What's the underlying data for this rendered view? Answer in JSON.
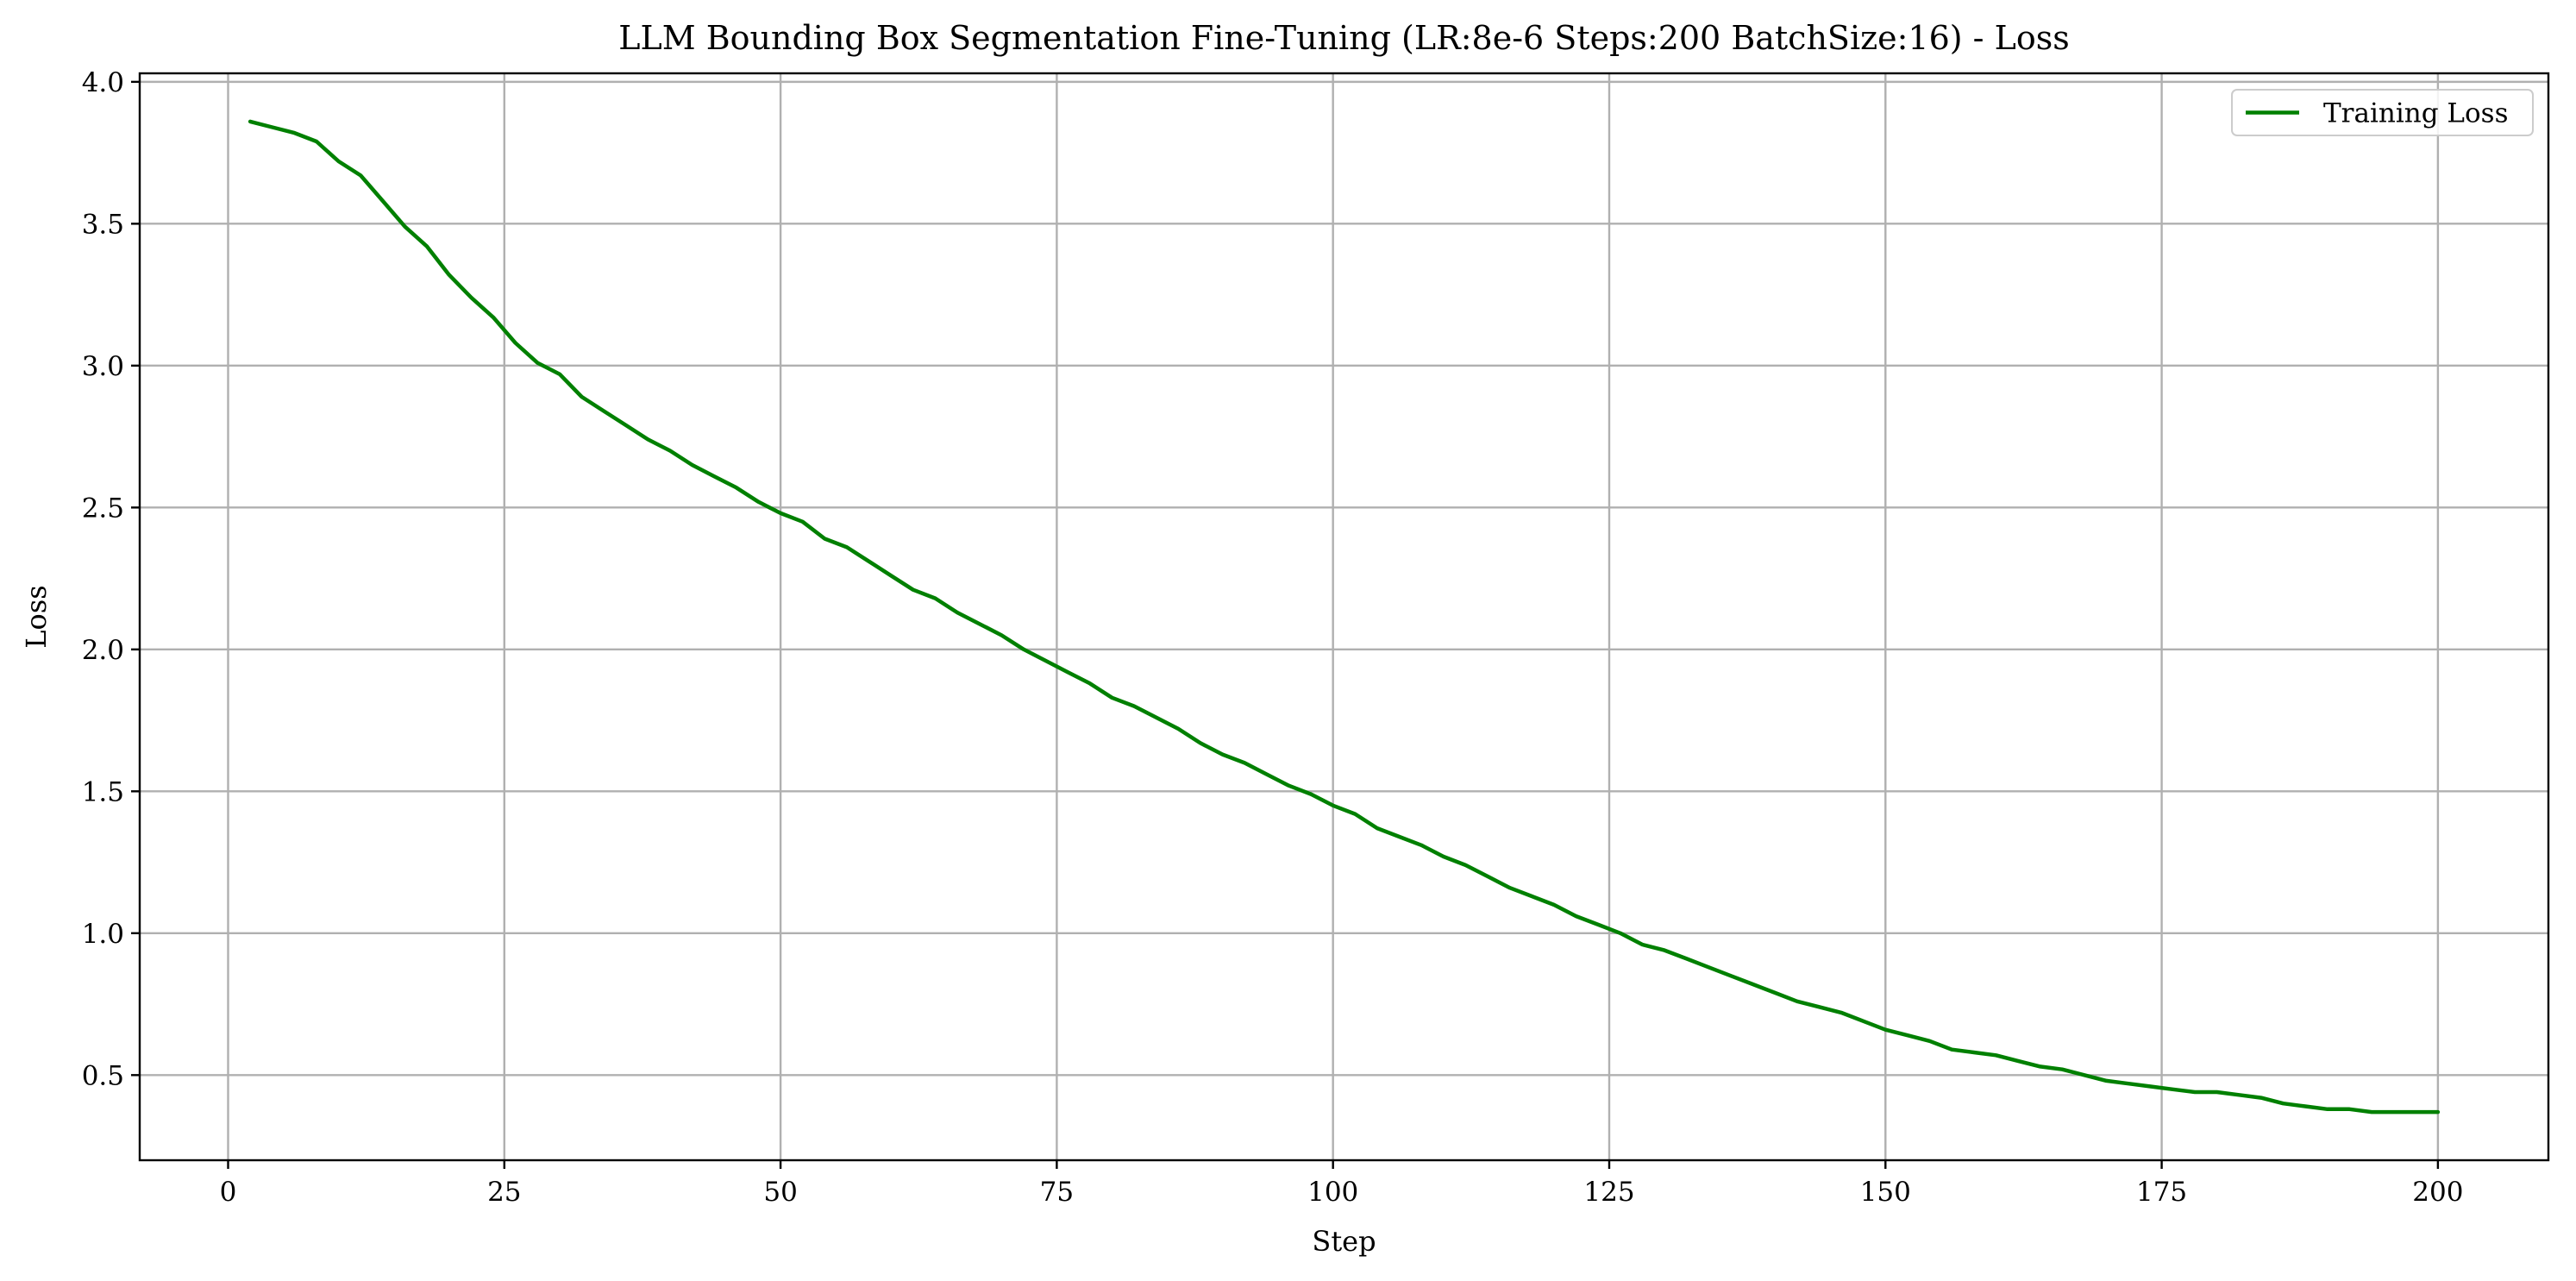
{
  "chart_data": {
    "type": "line",
    "title": "LLM Bounding Box Segmentation Fine-Tuning (LR:8e-6 Steps:200 BatchSize:16) - Loss",
    "xlabel": "Step",
    "ylabel": "Loss",
    "xlim": [
      -8,
      210
    ],
    "ylim": [
      0.2,
      4.03
    ],
    "xticks": [
      0,
      25,
      50,
      75,
      100,
      125,
      150,
      175,
      200
    ],
    "xtick_labels": [
      "0",
      "25",
      "50",
      "75",
      "100",
      "125",
      "150",
      "175",
      "200"
    ],
    "yticks": [
      0.5,
      1.0,
      1.5,
      2.0,
      2.5,
      3.0,
      3.5,
      4.0
    ],
    "ytick_labels": [
      "0.5",
      "1.0",
      "1.5",
      "2.0",
      "2.5",
      "3.0",
      "3.5",
      "4.0"
    ],
    "grid": true,
    "legend_position": "top-right",
    "series": [
      {
        "name": "Training Loss",
        "color": "#008000",
        "x": [
          2,
          4,
          6,
          8,
          10,
          12,
          14,
          16,
          18,
          20,
          22,
          24,
          26,
          28,
          30,
          32,
          34,
          36,
          38,
          40,
          42,
          44,
          46,
          48,
          50,
          52,
          54,
          56,
          58,
          60,
          62,
          64,
          66,
          68,
          70,
          72,
          74,
          76,
          78,
          80,
          82,
          84,
          86,
          88,
          90,
          92,
          94,
          96,
          98,
          100,
          102,
          104,
          106,
          108,
          110,
          112,
          114,
          116,
          118,
          120,
          122,
          124,
          126,
          128,
          130,
          132,
          134,
          136,
          138,
          140,
          142,
          144,
          146,
          148,
          150,
          152,
          154,
          156,
          158,
          160,
          162,
          164,
          166,
          168,
          170,
          172,
          174,
          176,
          178,
          180,
          182,
          184,
          186,
          188,
          190,
          192,
          194,
          196,
          198,
          200
        ],
        "values": [
          3.86,
          3.84,
          3.82,
          3.79,
          3.72,
          3.67,
          3.58,
          3.49,
          3.42,
          3.32,
          3.24,
          3.17,
          3.08,
          3.01,
          2.97,
          2.89,
          2.84,
          2.79,
          2.74,
          2.7,
          2.65,
          2.61,
          2.57,
          2.52,
          2.48,
          2.45,
          2.39,
          2.36,
          2.31,
          2.26,
          2.21,
          2.18,
          2.13,
          2.09,
          2.05,
          2.0,
          1.96,
          1.92,
          1.88,
          1.83,
          1.8,
          1.76,
          1.72,
          1.67,
          1.63,
          1.6,
          1.56,
          1.52,
          1.49,
          1.45,
          1.42,
          1.37,
          1.34,
          1.31,
          1.27,
          1.24,
          1.2,
          1.16,
          1.13,
          1.1,
          1.06,
          1.03,
          1.0,
          0.96,
          0.94,
          0.91,
          0.88,
          0.85,
          0.82,
          0.79,
          0.76,
          0.74,
          0.72,
          0.69,
          0.66,
          0.64,
          0.62,
          0.59,
          0.58,
          0.57,
          0.55,
          0.53,
          0.52,
          0.5,
          0.48,
          0.47,
          0.46,
          0.45,
          0.44,
          0.44,
          0.43,
          0.42,
          0.4,
          0.39,
          0.38,
          0.38,
          0.37,
          0.37,
          0.37,
          0.37
        ]
      }
    ]
  }
}
